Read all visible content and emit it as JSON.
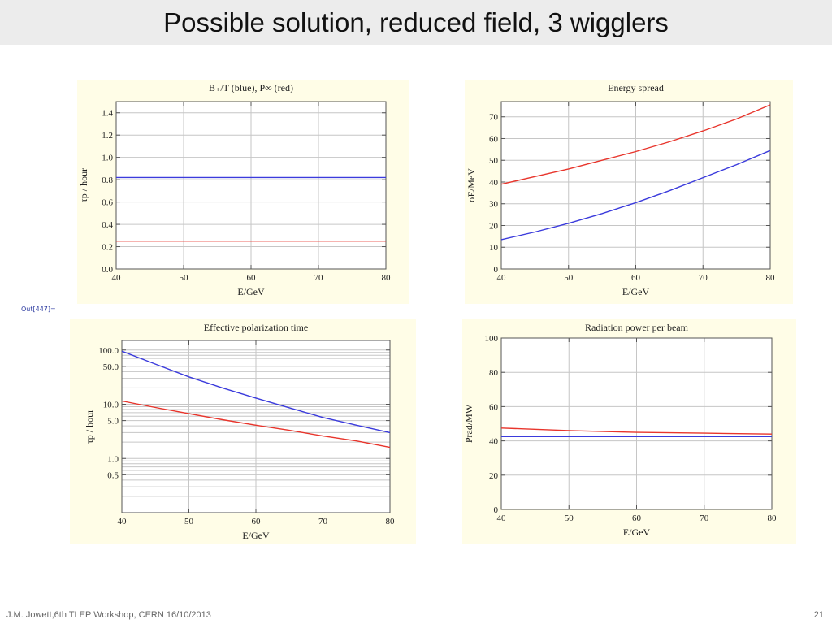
{
  "slide": {
    "title": "Possible solution, reduced field, 3 wigglers",
    "out_label": "Out[447]=",
    "footer_left": "J.M. Jowett,6th TLEP Workshop, CERN 16/10/2013",
    "page_number": "21"
  },
  "colors": {
    "blue": "#3b3bdc",
    "red": "#e8352c",
    "panel_bg": "#fffde7",
    "plot_bg": "#ffffff",
    "grid": "#c6c6c6"
  },
  "chart_data": [
    {
      "id": "wiggler-field",
      "type": "line",
      "title": "B₊/T (blue), P∞ (red)",
      "xlabel": "E/GeV",
      "ylabel": "τp / hour",
      "xlim": [
        40,
        80
      ],
      "ylim": [
        0,
        1.5
      ],
      "yscale": "linear",
      "xticks": [
        40,
        50,
        60,
        70,
        80
      ],
      "yticks": [
        0.0,
        0.2,
        0.4,
        0.6,
        0.8,
        1.0,
        1.2,
        1.4
      ],
      "ytick_labels": [
        "0.0",
        "0.2",
        "0.4",
        "0.6",
        "0.8",
        "1.0",
        "1.2",
        "1.4"
      ],
      "grid": true,
      "series": [
        {
          "color": "blue",
          "x": [
            40,
            80
          ],
          "y": [
            0.82,
            0.82
          ]
        },
        {
          "color": "red",
          "x": [
            40,
            80
          ],
          "y": [
            0.25,
            0.25
          ]
        }
      ]
    },
    {
      "id": "energy-spread",
      "type": "line",
      "title": "Energy spread",
      "xlabel": "E/GeV",
      "ylabel": "σE/MeV",
      "xlim": [
        40,
        80
      ],
      "ylim": [
        0,
        77
      ],
      "yscale": "linear",
      "xticks": [
        40,
        50,
        60,
        70,
        80
      ],
      "yticks": [
        0,
        10,
        20,
        30,
        40,
        50,
        60,
        70
      ],
      "ytick_labels": [
        "0",
        "10",
        "20",
        "30",
        "40",
        "50",
        "60",
        "70"
      ],
      "grid": true,
      "series": [
        {
          "color": "red",
          "x": [
            40,
            45,
            50,
            55,
            60,
            65,
            70,
            75,
            80
          ],
          "y": [
            39,
            42.5,
            46,
            50,
            54,
            58.5,
            63.5,
            69,
            75.5
          ]
        },
        {
          "color": "blue",
          "x": [
            40,
            45,
            50,
            55,
            60,
            65,
            70,
            75,
            80
          ],
          "y": [
            13.5,
            17,
            21,
            25.5,
            30.5,
            36,
            42,
            48,
            54.5
          ]
        }
      ]
    },
    {
      "id": "polarization-time",
      "type": "line",
      "title": "Effective polarization time",
      "xlabel": "E/GeV",
      "ylabel": "τp / hour",
      "xlim": [
        40,
        80
      ],
      "ylim": [
        0.1,
        150
      ],
      "yscale": "log",
      "xticks": [
        40,
        50,
        60,
        70,
        80
      ],
      "yticks": [
        0.5,
        1.0,
        5.0,
        10.0,
        50.0,
        100.0
      ],
      "ytick_labels": [
        "0.5",
        "1.0",
        "5.0",
        "10.0",
        "50.0",
        "100.0"
      ],
      "grid": true,
      "series": [
        {
          "color": "blue",
          "x": [
            40,
            45,
            50,
            55,
            60,
            65,
            70,
            75,
            80
          ],
          "y": [
            95,
            55,
            32,
            20,
            13,
            8.6,
            5.7,
            4.1,
            3.0
          ]
        },
        {
          "color": "red",
          "x": [
            40,
            45,
            50,
            55,
            60,
            65,
            70,
            75,
            80
          ],
          "y": [
            11.5,
            8.7,
            6.7,
            5.2,
            4.1,
            3.3,
            2.6,
            2.1,
            1.6
          ]
        }
      ]
    },
    {
      "id": "radiation-power",
      "type": "line",
      "title": "Radiation power per beam",
      "xlabel": "E/GeV",
      "ylabel": "Prad/MW",
      "xlim": [
        40,
        80
      ],
      "ylim": [
        0,
        100
      ],
      "yscale": "linear",
      "xticks": [
        40,
        50,
        60,
        70,
        80
      ],
      "yticks": [
        0,
        20,
        40,
        60,
        80,
        100
      ],
      "ytick_labels": [
        "0",
        "20",
        "40",
        "60",
        "80",
        "100"
      ],
      "grid": true,
      "series": [
        {
          "color": "red",
          "x": [
            40,
            50,
            60,
            70,
            80
          ],
          "y": [
            47.5,
            46,
            45,
            44.5,
            44
          ]
        },
        {
          "color": "blue",
          "x": [
            40,
            80
          ],
          "y": [
            42.5,
            42.5
          ]
        }
      ]
    }
  ]
}
